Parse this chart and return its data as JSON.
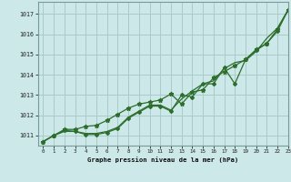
{
  "title": "Graphe pression niveau de la mer (hPa)",
  "bg_color": "#cce8e8",
  "grid_color": "#aacaca",
  "line_color": "#2d6e2d",
  "xlim": [
    -0.5,
    23
  ],
  "ylim": [
    1010.5,
    1017.6
  ],
  "yticks": [
    1011,
    1012,
    1013,
    1014,
    1015,
    1016,
    1017
  ],
  "xticks": [
    0,
    1,
    2,
    3,
    4,
    5,
    6,
    7,
    8,
    9,
    10,
    11,
    12,
    13,
    14,
    15,
    16,
    17,
    18,
    19,
    20,
    21,
    22,
    23
  ],
  "series1_x": [
    0,
    1,
    2,
    3,
    4,
    5,
    6,
    7,
    8,
    9,
    10,
    11,
    12,
    13,
    14,
    15,
    16,
    17,
    18,
    19,
    20,
    21,
    22,
    23
  ],
  "series1_y": [
    1010.7,
    1011.0,
    1011.2,
    1011.2,
    1011.1,
    1011.1,
    1011.2,
    1011.4,
    1011.9,
    1012.2,
    1012.5,
    1012.5,
    1012.25,
    1012.8,
    1013.2,
    1013.55,
    1013.7,
    1014.3,
    1014.6,
    1014.7,
    1015.15,
    1015.8,
    1016.3,
    1017.2
  ],
  "series2_x": [
    0,
    1,
    2,
    3,
    4,
    5,
    6,
    7,
    8,
    9,
    10,
    11,
    12,
    13,
    14,
    15,
    16,
    17,
    18,
    19,
    20,
    21,
    22,
    23
  ],
  "series2_y": [
    1010.7,
    1011.0,
    1011.25,
    1011.2,
    1011.05,
    1011.05,
    1011.15,
    1011.35,
    1011.85,
    1012.15,
    1012.45,
    1012.45,
    1012.2,
    1013.0,
    1012.9,
    1013.55,
    1013.55,
    1014.35,
    1013.55,
    1014.75,
    1015.2,
    1015.55,
    1016.15,
    1017.2
  ],
  "series3_x": [
    0,
    1,
    2,
    3,
    4,
    5,
    6,
    7,
    8,
    9,
    10,
    11,
    12,
    13,
    14,
    15,
    16,
    17,
    18,
    19,
    20,
    21,
    22,
    23
  ],
  "series3_y": [
    1010.7,
    1011.0,
    1011.3,
    1011.3,
    1011.45,
    1011.5,
    1011.75,
    1012.05,
    1012.35,
    1012.55,
    1012.65,
    1012.75,
    1013.05,
    1012.55,
    1013.15,
    1013.25,
    1013.85,
    1014.15,
    1014.45,
    1014.75,
    1015.25,
    1015.55,
    1016.25,
    1017.2
  ]
}
